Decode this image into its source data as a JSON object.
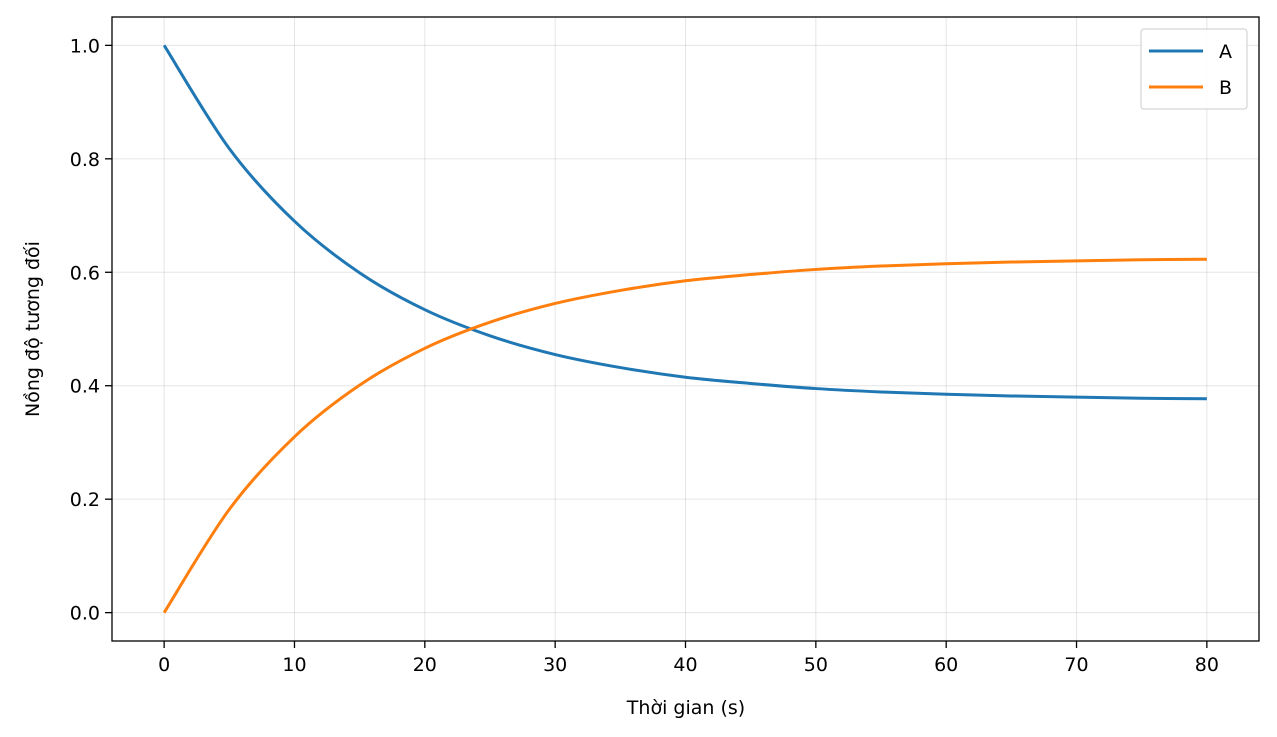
{
  "chart_data": {
    "type": "line",
    "title": "",
    "xlabel": "Thời gian (s)",
    "ylabel": "Nồng độ tương đối",
    "xlim": [
      -4,
      84
    ],
    "ylim": [
      -0.05,
      1.05
    ],
    "xticks": [
      "0",
      "10",
      "20",
      "30",
      "40",
      "50",
      "60",
      "70",
      "80"
    ],
    "yticks": [
      "0.0",
      "0.2",
      "0.4",
      "0.6",
      "0.8",
      "1.0"
    ],
    "grid": true,
    "legend_position": "top-right",
    "x": [
      0,
      5,
      10,
      15,
      20,
      25,
      30,
      35,
      40,
      45,
      50,
      55,
      60,
      65,
      70,
      75,
      80
    ],
    "series": [
      {
        "name": "A",
        "color": "#1f77b4",
        "values": [
          1.0,
          0.818,
          0.69,
          0.599,
          0.534,
          0.488,
          0.455,
          0.432,
          0.415,
          0.404,
          0.395,
          0.389,
          0.385,
          0.382,
          0.38,
          0.378,
          0.377
        ]
      },
      {
        "name": "B",
        "color": "#ff7f0e",
        "values": [
          0.0,
          0.182,
          0.31,
          0.401,
          0.466,
          0.512,
          0.545,
          0.568,
          0.585,
          0.596,
          0.605,
          0.611,
          0.615,
          0.618,
          0.62,
          0.622,
          0.623
        ]
      }
    ]
  }
}
